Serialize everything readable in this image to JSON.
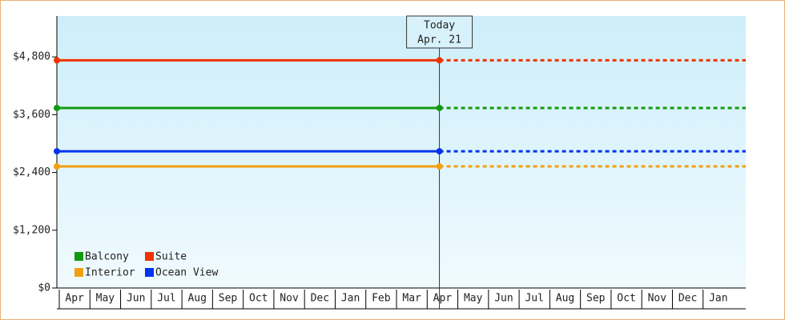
{
  "chart_data": {
    "type": "line",
    "categories": [
      "Apr",
      "May",
      "Jun",
      "Jul",
      "Aug",
      "Sep",
      "Oct",
      "Nov",
      "Dec",
      "Jan",
      "Feb",
      "Mar",
      "Apr",
      "May",
      "Jun",
      "Jul",
      "Aug",
      "Sep",
      "Oct",
      "Nov",
      "Dec",
      "Jan"
    ],
    "series": [
      {
        "name": "Balcony",
        "color": "#119911",
        "value": 3740
      },
      {
        "name": "Suite",
        "color": "#ee3300",
        "value": 4730
      },
      {
        "name": "Interior",
        "color": "#f0a010",
        "value": 2525
      },
      {
        "name": "Ocean View",
        "color": "#0033ee",
        "value": 2840
      }
    ],
    "today_label": "Today",
    "today_date": "Apr. 21",
    "ylim": [
      0,
      5650
    ],
    "yticks": [
      {
        "value": 0,
        "label": "$0"
      },
      {
        "value": 1200,
        "label": "$1,200"
      },
      {
        "value": 2400,
        "label": "$2,400"
      },
      {
        "value": 3600,
        "label": "$3,600"
      },
      {
        "value": 4800,
        "label": "$4,800"
      }
    ]
  }
}
